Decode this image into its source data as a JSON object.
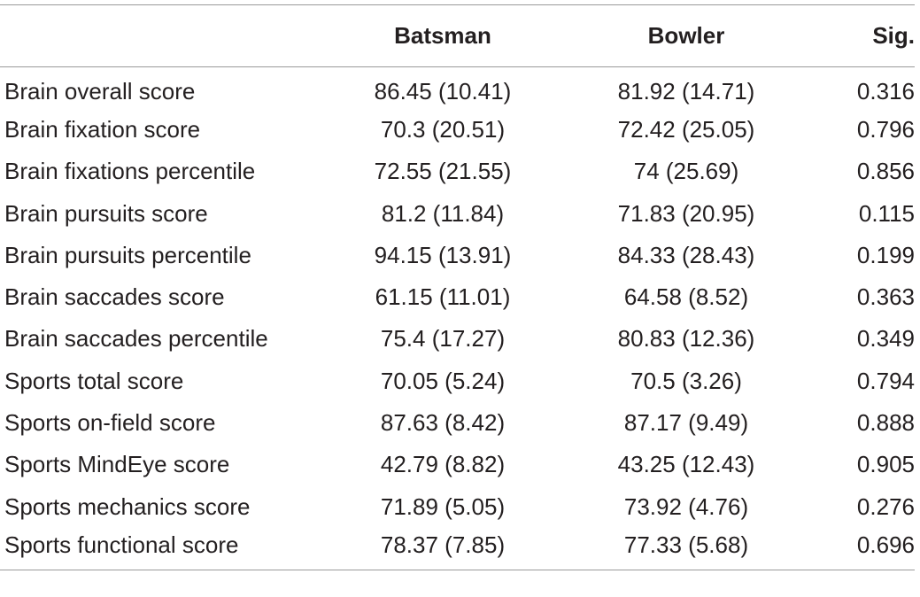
{
  "table": {
    "headers": [
      "",
      "Batsman",
      "Bowler",
      "Sig."
    ],
    "rows": [
      {
        "label": "Brain overall score",
        "batsman": "86.45 (10.41)",
        "bowler": "81.92 (14.71)",
        "sig": "0.316"
      },
      {
        "label": "Brain fixation score",
        "batsman": "70.3 (20.51)",
        "bowler": "72.42 (25.05)",
        "sig": "0.796"
      },
      {
        "label": "Brain fixations percentile",
        "batsman": "72.55 (21.55)",
        "bowler": "74 (25.69)",
        "sig": "0.856"
      },
      {
        "label": "Brain pursuits score",
        "batsman": "81.2 (11.84)",
        "bowler": "71.83 (20.95)",
        "sig": "0.115"
      },
      {
        "label": "Brain pursuits percentile",
        "batsman": "94.15 (13.91)",
        "bowler": "84.33 (28.43)",
        "sig": "0.199"
      },
      {
        "label": "Brain saccades score",
        "batsman": "61.15 (11.01)",
        "bowler": "64.58 (8.52)",
        "sig": "0.363"
      },
      {
        "label": "Brain saccades percentile",
        "batsman": "75.4 (17.27)",
        "bowler": "80.83 (12.36)",
        "sig": "0.349"
      },
      {
        "label": "Sports total score",
        "batsman": "70.05 (5.24)",
        "bowler": "70.5 (3.26)",
        "sig": "0.794"
      },
      {
        "label": "Sports on-field score",
        "batsman": "87.63 (8.42)",
        "bowler": "87.17 (9.49)",
        "sig": "0.888"
      },
      {
        "label": "Sports MindEye score",
        "batsman": "42.79 (8.82)",
        "bowler": "43.25 (12.43)",
        "sig": "0.905"
      },
      {
        "label": "Sports mechanics score",
        "batsman": "71.89 (5.05)",
        "bowler": "73.92 (4.76)",
        "sig": "0.276"
      },
      {
        "label": "Sports functional score",
        "batsman": "78.37 (7.85)",
        "bowler": "77.33 (5.68)",
        "sig": "0.696"
      }
    ]
  }
}
